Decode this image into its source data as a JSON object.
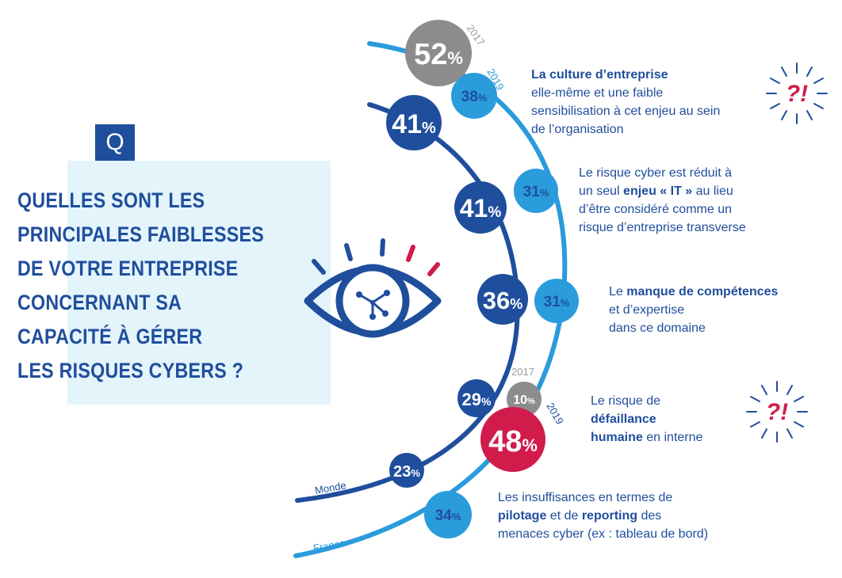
{
  "question": {
    "badge": "Q",
    "text": "QUELLES SONT LES\nPRINCIPALES FAIBLESSES\nDE VOTRE ENTREPRISE\nCONCERNANT SA\nCAPACITÉ À GÉRER\nLES RISQUES CYBERS ?"
  },
  "arcs": {
    "monde_label": "Monde",
    "france_label": "France"
  },
  "years": {
    "y2017_top": "2017",
    "y2019_top": "2019",
    "y2017_bottom": "2017",
    "y2019_bottom": "2019"
  },
  "colors": {
    "dark_blue": "#1f4e9c",
    "light_blue": "#2a9bdb",
    "gray": "#8c8c8c",
    "red": "#d11b4b"
  },
  "items": [
    {
      "monde": "41",
      "france_2017": "52",
      "france_2019": "38",
      "label_parts": [
        {
          "b": true,
          "t": "La culture d’entreprise"
        },
        {
          "b": false,
          "t": "\nelle-même et une faible\nsensibilisation à cet enjeu au sein\nde l’organisation"
        }
      ],
      "warning_icon": true
    },
    {
      "monde": "41",
      "france": "31",
      "label_parts": [
        {
          "b": false,
          "t": "Le risque cyber est réduit à\nun seul "
        },
        {
          "b": true,
          "t": "enjeu « IT »"
        },
        {
          "b": false,
          "t": " au lieu\nd’être considéré comme un\nrisque d’entreprise transverse"
        }
      ]
    },
    {
      "monde": "36",
      "france": "31",
      "label_parts": [
        {
          "b": false,
          "t": "Le "
        },
        {
          "b": true,
          "t": "manque de compétences"
        },
        {
          "b": false,
          "t": "\net d’expertise\ndans ce domaine"
        }
      ]
    },
    {
      "monde": "29",
      "france_2017": "10",
      "france_2019": "48",
      "label_parts": [
        {
          "b": false,
          "t": "Le risque de\n"
        },
        {
          "b": true,
          "t": "défaillance\nhumaine"
        },
        {
          "b": false,
          "t": " en interne"
        }
      ],
      "warning_icon": true
    },
    {
      "monde": "23",
      "france": "34",
      "label_parts": [
        {
          "b": false,
          "t": "Les insuffisances en termes de\n"
        },
        {
          "b": true,
          "t": "pilotage"
        },
        {
          "b": false,
          "t": " et de "
        },
        {
          "b": true,
          "t": "reporting"
        },
        {
          "b": false,
          "t": " des\nmenaces cyber (ex : tableau de bord)"
        }
      ]
    }
  ],
  "icons": {
    "central": "eye-network-icon",
    "warning": "question-exclamation-burst-icon"
  },
  "units": {
    "percent": "%"
  }
}
